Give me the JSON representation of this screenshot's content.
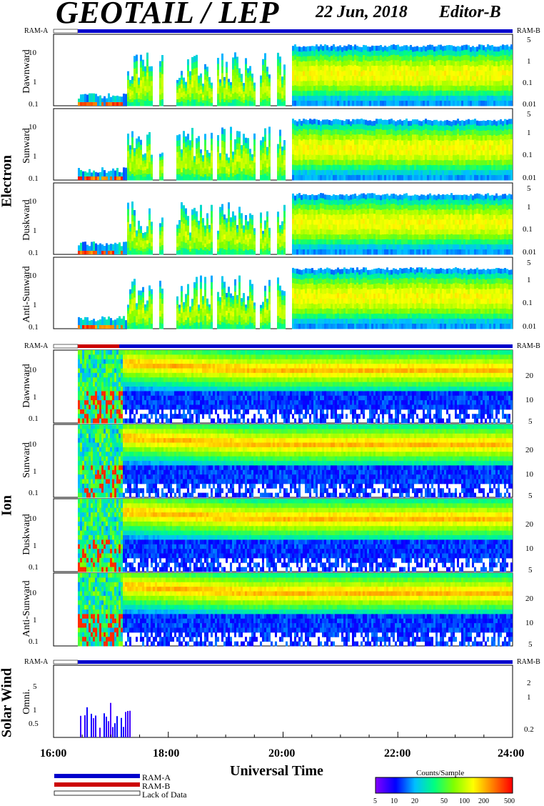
{
  "header": {
    "title": "GEOTAIL / LEP",
    "date": "22 Jun, 2018",
    "editor": "Editor-B"
  },
  "ram_labels": {
    "left": "RAM-A",
    "right": "RAM-B"
  },
  "groups": {
    "electron": "Electron",
    "ion": "Ion",
    "solar_wind": "Solar Wind"
  },
  "panel_labels": {
    "e_dawn": "Dawnward",
    "e_sun": "Sunward",
    "e_dusk": "Duskward",
    "e_anti": "Anti-Sunward",
    "i_dawn": "Dawnward",
    "i_sun": "Sunward",
    "i_dusk": "Duskward",
    "i_anti": "Anti-Sunward",
    "sw": "Omni."
  },
  "left_ticks": {
    "e1": [
      "10",
      "1",
      "0.1"
    ],
    "e2": [
      "10",
      "1",
      "0.1"
    ],
    "e3": [
      "10",
      "1",
      "0.1"
    ],
    "e4": [
      "10",
      "1",
      "0.1"
    ],
    "i1": [
      "10",
      "1",
      "0.1"
    ],
    "i2": [
      "10",
      "1",
      "0.1"
    ],
    "i3": [
      "10",
      "1",
      "0.1"
    ],
    "i4": [
      "10",
      "1",
      "0.1"
    ],
    "sw": [
      "5",
      "1",
      "0.5"
    ]
  },
  "right_ticks": {
    "e1": [
      "5",
      "1",
      "0.1",
      "0.01"
    ],
    "e2": [
      "5",
      "1",
      "0.1",
      "0.01"
    ],
    "e3": [
      "5",
      "1",
      "0.1",
      "0.01"
    ],
    "e4": [
      "5",
      "1",
      "0.1",
      "0.01"
    ],
    "i1": [
      "20",
      "10",
      "5"
    ],
    "i2": [
      "20",
      "10",
      "5"
    ],
    "i3": [
      "20",
      "10",
      "5"
    ],
    "i4": [
      "20",
      "10",
      "5"
    ],
    "sw": [
      "2",
      "1",
      "0.2"
    ]
  },
  "x_ticks": [
    "16:00",
    "18:00",
    "20:00",
    "22:00",
    "24:00"
  ],
  "x_label": "Universal Time",
  "legend": {
    "ram_a": "RAM-A",
    "ram_b": "RAM-B",
    "lack": "Lack of Data"
  },
  "colorbar": {
    "title": "Counts/Sample",
    "ticks": [
      "5",
      "10",
      "20",
      "50",
      "100",
      "200",
      "500"
    ],
    "colors": [
      "#7f00ff",
      "#0000ff",
      "#00bfff",
      "#00ff80",
      "#80ff00",
      "#ffff00",
      "#ff8000",
      "#ff0000"
    ]
  },
  "chart_data": {
    "type": "heatmap",
    "x_range_ut": [
      "16:00",
      "24:00"
    ],
    "data_start_ut": "16:25",
    "panels": [
      {
        "group": "Electron",
        "name": "Dawnward"
      },
      {
        "group": "Electron",
        "name": "Sunward"
      },
      {
        "group": "Electron",
        "name": "Duskward"
      },
      {
        "group": "Electron",
        "name": "Anti-Sunward"
      },
      {
        "group": "Ion",
        "name": "Dawnward"
      },
      {
        "group": "Ion",
        "name": "Sunward"
      },
      {
        "group": "Ion",
        "name": "Duskward"
      },
      {
        "group": "Ion",
        "name": "Anti-Sunward"
      },
      {
        "group": "Solar Wind",
        "name": "Omni."
      }
    ],
    "color_scale": "log",
    "color_range": [
      5,
      500
    ]
  }
}
